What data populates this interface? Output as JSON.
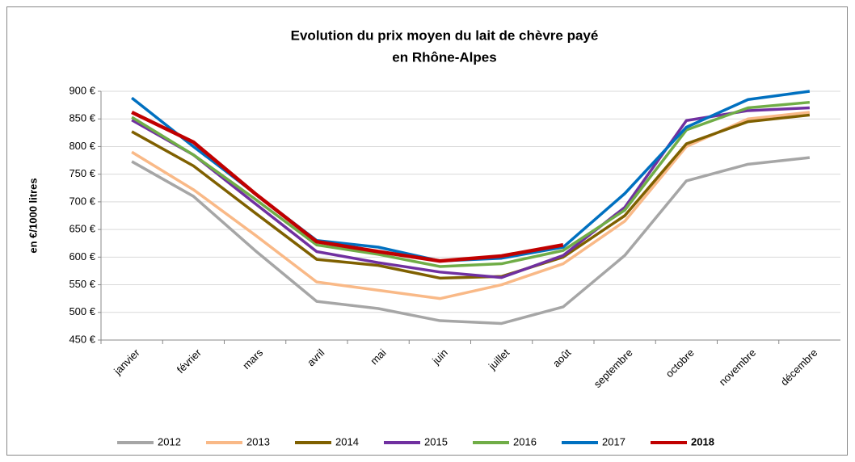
{
  "chart_data": {
    "type": "line",
    "title": [
      "Evolution du prix moyen du lait de chèvre payé",
      "en Rhône-Alpes"
    ],
    "y_label": "en €/1000 litres",
    "categories": [
      "janvier",
      "février",
      "mars",
      "avril",
      "mai",
      "juin",
      "juillet",
      "août",
      "septembre",
      "octobre",
      "novembre",
      "décembre"
    ],
    "series": [
      {
        "name": "2012",
        "color": "#a6a6a6",
        "values": [
          773,
          710,
          612,
          520,
          507,
          485,
          480,
          510,
          603,
          738,
          768,
          780
        ]
      },
      {
        "name": "2013",
        "color": "#f9b987",
        "values": [
          790,
          722,
          640,
          555,
          540,
          525,
          550,
          588,
          665,
          800,
          850,
          862
        ]
      },
      {
        "name": "2014",
        "color": "#7f6000",
        "values": [
          827,
          765,
          680,
          596,
          585,
          562,
          565,
          600,
          675,
          805,
          845,
          857
        ]
      },
      {
        "name": "2015",
        "color": "#7030a0",
        "values": [
          848,
          785,
          697,
          610,
          590,
          573,
          563,
          603,
          690,
          847,
          865,
          870
        ]
      },
      {
        "name": "2016",
        "color": "#70ad47",
        "values": [
          853,
          785,
          705,
          622,
          605,
          583,
          588,
          612,
          685,
          830,
          870,
          880
        ]
      },
      {
        "name": "2017",
        "color": "#0070c0",
        "values": [
          888,
          800,
          715,
          630,
          618,
          593,
          598,
          618,
          715,
          835,
          885,
          900
        ]
      },
      {
        "name": "2018",
        "color": "#c00000",
        "values": [
          862,
          808,
          715,
          628,
          610,
          593,
          602,
          622,
          null,
          null,
          null,
          null
        ]
      }
    ],
    "ylim": [
      450,
      900
    ],
    "yticks": [
      {
        "value": 450,
        "label": "450 €"
      },
      {
        "value": 500,
        "label": "500 €"
      },
      {
        "value": 550,
        "label": "550 €"
      },
      {
        "value": 600,
        "label": "600 €"
      },
      {
        "value": 650,
        "label": "650 €"
      },
      {
        "value": 700,
        "label": "700 €"
      },
      {
        "value": 750,
        "label": "750 €"
      },
      {
        "value": 800,
        "label": "800 €"
      },
      {
        "value": 850,
        "label": "850 €"
      },
      {
        "value": 900,
        "label": "900 €"
      }
    ],
    "grid": true,
    "legend": "bottom"
  }
}
